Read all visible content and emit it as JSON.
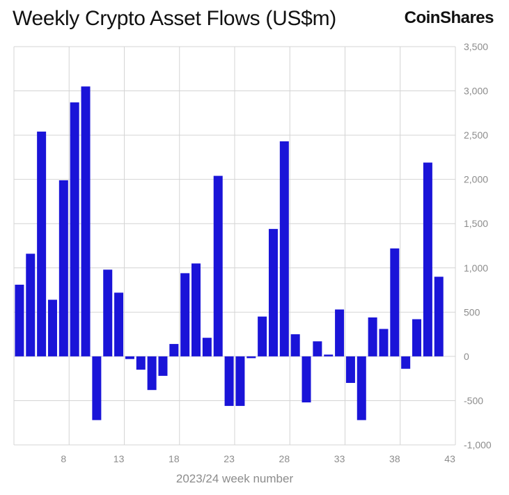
{
  "chart_data": {
    "type": "bar",
    "title": "Weekly Crypto Asset Flows (US$m)",
    "brand": "CoinShares",
    "xlabel": "2023/24 week number",
    "ylabel": "",
    "x": [
      4,
      5,
      6,
      7,
      8,
      9,
      10,
      11,
      12,
      13,
      14,
      15,
      16,
      17,
      18,
      19,
      20,
      21,
      22,
      23,
      24,
      25,
      26,
      27,
      28,
      29,
      30,
      31,
      32,
      33,
      34,
      35,
      36,
      37,
      38,
      39,
      40,
      41,
      42,
      43
    ],
    "values": [
      810,
      1160,
      2540,
      640,
      1990,
      2870,
      3050,
      -720,
      980,
      720,
      -30,
      -150,
      -380,
      -220,
      140,
      940,
      1050,
      210,
      2040,
      -560,
      -560,
      -20,
      450,
      1440,
      2430,
      250,
      -520,
      170,
      20,
      530,
      -300,
      -720,
      440,
      310,
      1220,
      -140,
      420,
      2190,
      900,
      0
    ],
    "xticks": [
      "8",
      "13",
      "18",
      "23",
      "28",
      "33",
      "38",
      "43"
    ],
    "yticks": [
      "3,500",
      "3,000",
      "2,500",
      "2,000",
      "1,500",
      "1,000",
      "500",
      "0",
      "-500",
      "-1,000"
    ],
    "ylim": [
      -1000,
      3500
    ],
    "bar_color": "#1a14d8",
    "grid": true,
    "y_axis_side": "right"
  }
}
